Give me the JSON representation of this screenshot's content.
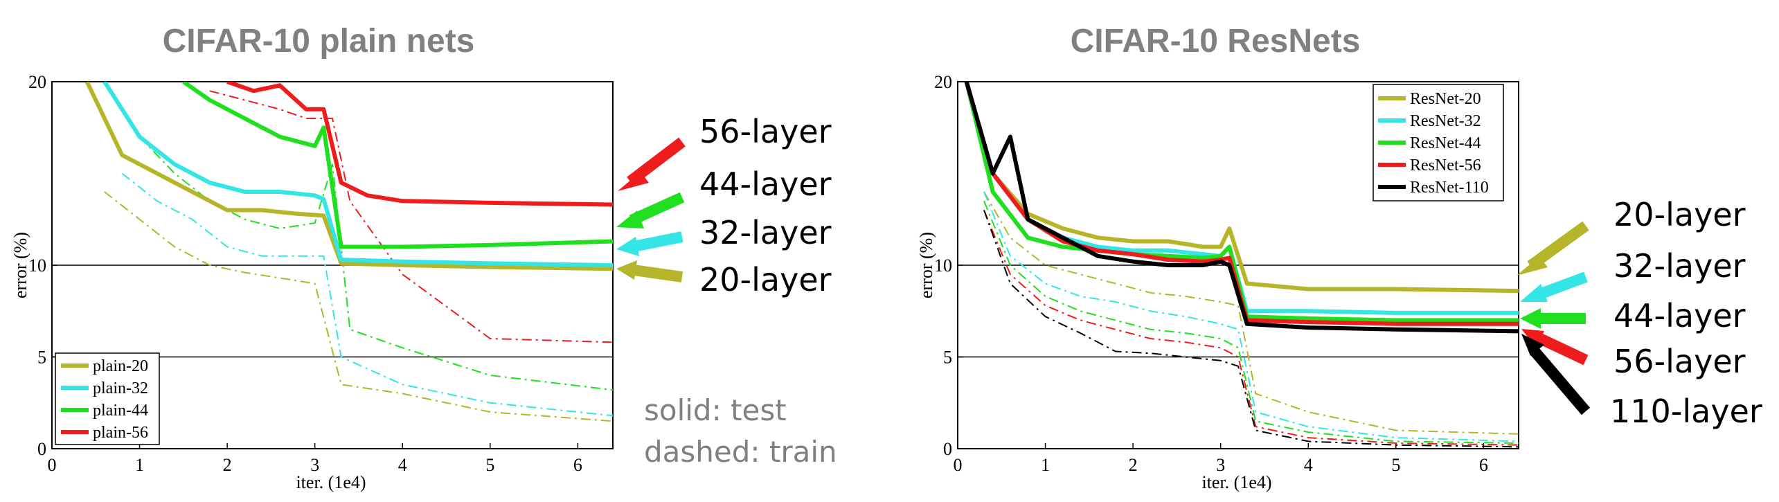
{
  "chart_data": [
    {
      "type": "line",
      "title": "CIFAR-10 plain nets",
      "xlabel": "iter. (1e4)",
      "ylabel": "error (%)",
      "xlim": [
        0,
        6.4
      ],
      "ylim": [
        0,
        20
      ],
      "xticks": [
        "0",
        "1",
        "2",
        "3",
        "4",
        "5",
        "6"
      ],
      "yticks": [
        "0",
        "5",
        "10",
        "20"
      ],
      "grid": "horizontal lines at 5, 10, 20",
      "legend_position": "bottom-left",
      "legend": [
        "plain-20",
        "plain-32",
        "plain-44",
        "plain-56"
      ],
      "annotations": [
        "56-layer",
        "44-layer",
        "32-layer",
        "20-layer"
      ],
      "notes": [
        "solid: test",
        "dashed: train"
      ],
      "series": [
        {
          "name": "plain-20",
          "kind": "test",
          "color": "#b5b52a",
          "x": [
            0.4,
            0.8,
            1.2,
            1.6,
            2.0,
            2.4,
            2.8,
            3.1,
            3.3,
            4.0,
            5.0,
            6.4
          ],
          "y": [
            20,
            16,
            15,
            14,
            13,
            13,
            12.8,
            12.7,
            10.1,
            10.0,
            9.9,
            9.8
          ]
        },
        {
          "name": "plain-32",
          "kind": "test",
          "color": "#33e5e5",
          "x": [
            0.6,
            1.0,
            1.4,
            1.8,
            2.2,
            2.6,
            3.0,
            3.1,
            3.3,
            4.0,
            5.0,
            6.4
          ],
          "y": [
            20,
            17,
            15.5,
            14.5,
            14,
            14,
            13.8,
            13.6,
            10.3,
            10.2,
            10.1,
            10.0
          ]
        },
        {
          "name": "plain-44",
          "kind": "test",
          "color": "#1fe01f",
          "x": [
            1.5,
            1.8,
            2.2,
            2.6,
            3.0,
            3.1,
            3.3,
            4.0,
            5.0,
            6.4
          ],
          "y": [
            20,
            19,
            18,
            17,
            16.5,
            17.5,
            11.0,
            11.0,
            11.1,
            11.3
          ]
        },
        {
          "name": "plain-56",
          "kind": "test",
          "color": "#ee1c1c",
          "x": [
            2.0,
            2.3,
            2.6,
            2.9,
            3.1,
            3.3,
            3.6,
            4.0,
            5.0,
            6.4
          ],
          "y": [
            20,
            19.5,
            19.8,
            18.5,
            18.5,
            14.5,
            13.8,
            13.5,
            13.4,
            13.3
          ]
        },
        {
          "name": "plain-20 train",
          "kind": "train",
          "color": "#b5b52a",
          "x": [
            0.6,
            1.0,
            1.4,
            1.8,
            2.2,
            2.6,
            3.0,
            3.3,
            4.0,
            5.0,
            6.4
          ],
          "y": [
            14,
            12.5,
            11,
            10,
            9.6,
            9.3,
            9.0,
            3.5,
            3.0,
            2.0,
            1.5
          ]
        },
        {
          "name": "plain-32 train",
          "kind": "train",
          "color": "#33e5e5",
          "x": [
            0.8,
            1.2,
            1.6,
            2.0,
            2.4,
            2.8,
            3.1,
            3.3,
            4.0,
            5.0,
            6.4
          ],
          "y": [
            15,
            13.5,
            12.5,
            11,
            10.5,
            10.5,
            10.5,
            5,
            3.5,
            2.5,
            1.8
          ]
        },
        {
          "name": "plain-44 train",
          "kind": "train",
          "color": "#1fe01f",
          "x": [
            1.0,
            1.4,
            1.8,
            2.2,
            2.6,
            3.0,
            3.2,
            3.4,
            4.0,
            5.0,
            6.4
          ],
          "y": [
            17,
            15,
            13.5,
            12.5,
            12,
            12.3,
            15.5,
            6.5,
            5.5,
            4.0,
            3.2
          ]
        },
        {
          "name": "plain-56 train",
          "kind": "train",
          "color": "#ee1c1c",
          "x": [
            1.8,
            2.2,
            2.6,
            2.9,
            3.2,
            3.4,
            4.0,
            5.0,
            6.4
          ],
          "y": [
            19.5,
            19,
            18.5,
            18,
            18,
            13.5,
            9.5,
            6.0,
            5.8
          ]
        }
      ]
    },
    {
      "type": "line",
      "title": "CIFAR-10 ResNets",
      "xlabel": "iter. (1e4)",
      "ylabel": "error (%)",
      "xlim": [
        0,
        6.4
      ],
      "ylim": [
        0,
        20
      ],
      "xticks": [
        "0",
        "1",
        "2",
        "3",
        "4",
        "5",
        "6"
      ],
      "yticks": [
        "0",
        "5",
        "10",
        "20"
      ],
      "grid": "horizontal lines at 5, 10, 20",
      "legend_position": "top-right",
      "legend": [
        "ResNet-20",
        "ResNet-32",
        "ResNet-44",
        "ResNet-56",
        "ResNet-110"
      ],
      "annotations": [
        "20-layer",
        "32-layer",
        "44-layer",
        "56-layer",
        "110-layer"
      ],
      "series": [
        {
          "name": "ResNet-20",
          "kind": "test",
          "color": "#b5b52a",
          "x": [
            0.1,
            0.4,
            0.8,
            1.2,
            1.6,
            2.0,
            2.4,
            2.8,
            3.0,
            3.1,
            3.3,
            4.0,
            5.0,
            6.4
          ],
          "y": [
            20,
            15,
            12.8,
            12,
            11.5,
            11.3,
            11.3,
            11.0,
            11.0,
            12.0,
            9.0,
            8.7,
            8.7,
            8.6
          ]
        },
        {
          "name": "ResNet-32",
          "kind": "test",
          "color": "#33e5e5",
          "x": [
            0.1,
            0.4,
            0.8,
            1.2,
            1.6,
            2.0,
            2.4,
            2.8,
            3.0,
            3.1,
            3.3,
            4.0,
            5.0,
            6.4
          ],
          "y": [
            20,
            15,
            12.5,
            11.5,
            11,
            10.8,
            10.8,
            10.6,
            10.5,
            11.0,
            7.5,
            7.5,
            7.4,
            7.4
          ]
        },
        {
          "name": "ResNet-44",
          "kind": "test",
          "color": "#1fe01f",
          "x": [
            0.1,
            0.4,
            0.8,
            1.2,
            1.6,
            2.0,
            2.4,
            2.8,
            3.0,
            3.1,
            3.3,
            4.0,
            5.0,
            6.4
          ],
          "y": [
            20,
            14,
            11.5,
            11,
            10.8,
            10.6,
            10.5,
            10.4,
            10.5,
            11.0,
            7.2,
            7.1,
            7.0,
            7.0
          ]
        },
        {
          "name": "ResNet-56",
          "kind": "test",
          "color": "#ee1c1c",
          "x": [
            0.1,
            0.4,
            0.8,
            1.2,
            1.6,
            2.0,
            2.4,
            2.8,
            3.0,
            3.1,
            3.3,
            4.0,
            5.0,
            6.4
          ],
          "y": [
            20,
            15,
            12.5,
            11.3,
            10.8,
            10.6,
            10.3,
            10.2,
            10.3,
            10.4,
            7.0,
            6.9,
            6.8,
            6.8
          ]
        },
        {
          "name": "ResNet-110",
          "kind": "test",
          "color": "#000000",
          "x": [
            0.1,
            0.4,
            0.6,
            0.8,
            1.2,
            1.6,
            2.0,
            2.4,
            2.8,
            3.0,
            3.1,
            3.3,
            4.0,
            5.0,
            6.4
          ],
          "y": [
            20,
            15,
            17.0,
            12.5,
            11.5,
            10.5,
            10.2,
            10.0,
            10.0,
            10.2,
            10.0,
            6.8,
            6.6,
            6.5,
            6.4
          ]
        },
        {
          "name": "ResNet-20 train",
          "kind": "train",
          "color": "#b5b52a",
          "x": [
            0.3,
            0.6,
            1.0,
            1.4,
            1.8,
            2.2,
            2.6,
            3.0,
            3.2,
            3.4,
            4.0,
            5.0,
            6.4
          ],
          "y": [
            14,
            11.5,
            10,
            9.5,
            9.0,
            8.5,
            8.3,
            8.0,
            7.8,
            3.0,
            2.0,
            1.0,
            0.8
          ]
        },
        {
          "name": "ResNet-32 train",
          "kind": "train",
          "color": "#33e5e5",
          "x": [
            0.3,
            0.6,
            1.0,
            1.4,
            1.8,
            2.2,
            2.6,
            3.0,
            3.2,
            3.4,
            4.0,
            5.0,
            6.4
          ],
          "y": [
            14,
            10.5,
            9.0,
            8.3,
            8.0,
            7.5,
            7.2,
            6.8,
            6.5,
            2.0,
            1.2,
            0.6,
            0.4
          ]
        },
        {
          "name": "ResNet-44 train",
          "kind": "train",
          "color": "#1fe01f",
          "x": [
            0.3,
            0.6,
            1.0,
            1.4,
            1.8,
            2.2,
            2.6,
            3.0,
            3.2,
            3.4,
            4.0,
            5.0,
            6.4
          ],
          "y": [
            13.5,
            10,
            8.3,
            7.5,
            7.0,
            6.5,
            6.3,
            6.0,
            5.5,
            1.5,
            0.9,
            0.4,
            0.3
          ]
        },
        {
          "name": "ResNet-56 train",
          "kind": "train",
          "color": "#ee1c1c",
          "x": [
            0.3,
            0.6,
            1.0,
            1.4,
            1.8,
            2.2,
            2.6,
            3.0,
            3.2,
            3.4,
            4.0,
            5.0,
            6.4
          ],
          "y": [
            13,
            9.5,
            7.8,
            7.0,
            6.5,
            6.0,
            5.8,
            5.5,
            5.0,
            1.2,
            0.6,
            0.3,
            0.2
          ]
        },
        {
          "name": "ResNet-110 train",
          "kind": "train",
          "color": "#000000",
          "x": [
            0.3,
            0.6,
            1.0,
            1.4,
            1.8,
            2.2,
            2.6,
            3.0,
            3.2,
            3.4,
            4.0,
            5.0,
            6.4
          ],
          "y": [
            13,
            9.0,
            7.2,
            6.3,
            5.3,
            5.2,
            5.0,
            4.8,
            4.5,
            1.0,
            0.4,
            0.2,
            0.1
          ]
        }
      ]
    }
  ]
}
